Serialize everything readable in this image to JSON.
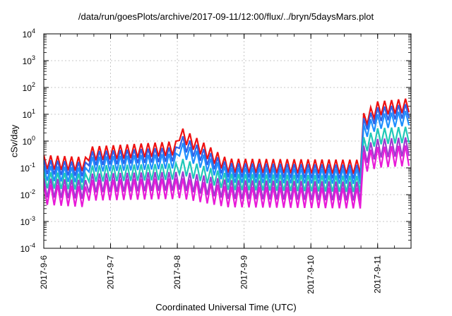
{
  "chart_data": {
    "type": "line",
    "title": "/data/run/goesPlots/archive/2017-09-11/12:00/flux/../bryn/5daysMars.plot",
    "xlabel": "Coordinated Universal Time (UTC)",
    "ylabel": "cSv/day",
    "yscale": "log",
    "ylim": [
      0.0001,
      10000
    ],
    "y_ticks": [
      {
        "value": 0.0001,
        "base": "10",
        "exp": "-4"
      },
      {
        "value": 0.001,
        "base": "10",
        "exp": "-3"
      },
      {
        "value": 0.01,
        "base": "10",
        "exp": "-2"
      },
      {
        "value": 0.1,
        "base": "10",
        "exp": "-1"
      },
      {
        "value": 1,
        "base": "10",
        "exp": "0"
      },
      {
        "value": 10,
        "base": "10",
        "exp": "1"
      },
      {
        "value": 100,
        "base": "10",
        "exp": "2"
      },
      {
        "value": 1000,
        "base": "10",
        "exp": "3"
      },
      {
        "value": 10000,
        "base": "10",
        "exp": "4"
      }
    ],
    "x_ticks": [
      "2017-9-6",
      "2017-9-7",
      "2017-9-8",
      "2017-9-9",
      "2017-9-10",
      "2017-9-11"
    ],
    "xlim": [
      "2017-09-06T00:00",
      "2017-09-11T12:00"
    ],
    "grid": true,
    "legend": "none",
    "cycle_hours": 2.5,
    "series": [
      {
        "color": "#ee1111",
        "points": [
          [
            "2017-09-06T00:00",
            0.3
          ],
          [
            "2017-09-06T15:00",
            0.25
          ],
          [
            "2017-09-06T15:01",
            0.6
          ],
          [
            "2017-09-07T18:00",
            0.9
          ],
          [
            "2017-09-08T00:00",
            1.0
          ],
          [
            "2017-09-08T00:01",
            4.0
          ],
          [
            "2017-09-08T18:00",
            0.22
          ],
          [
            "2017-09-10T18:00",
            0.2
          ],
          [
            "2017-09-10T18:01",
            9.0
          ],
          [
            "2017-09-11T00:00",
            30
          ],
          [
            "2017-09-11T12:00",
            40
          ]
        ],
        "trough_factor": 0.3
      },
      {
        "color": "#2f62e8",
        "points": [
          [
            "2017-09-06T00:00",
            0.2
          ],
          [
            "2017-09-06T15:00",
            0.16
          ],
          [
            "2017-09-06T15:01",
            0.4
          ],
          [
            "2017-09-07T18:00",
            0.55
          ],
          [
            "2017-09-08T00:00",
            0.6
          ],
          [
            "2017-09-08T00:01",
            2.0
          ],
          [
            "2017-09-08T18:00",
            0.15
          ],
          [
            "2017-09-10T18:00",
            0.13
          ],
          [
            "2017-09-10T18:01",
            6.0
          ],
          [
            "2017-09-11T00:00",
            18
          ],
          [
            "2017-09-11T12:00",
            25
          ]
        ],
        "trough_factor": 0.3
      },
      {
        "color": "#1e8fff",
        "points": [
          [
            "2017-09-06T00:00",
            0.12
          ],
          [
            "2017-09-06T15:00",
            0.1
          ],
          [
            "2017-09-06T15:01",
            0.25
          ],
          [
            "2017-09-07T18:00",
            0.32
          ],
          [
            "2017-09-08T00:00",
            0.35
          ],
          [
            "2017-09-08T00:01",
            1.1
          ],
          [
            "2017-09-08T18:00",
            0.1
          ],
          [
            "2017-09-10T18:00",
            0.09
          ],
          [
            "2017-09-10T18:01",
            3.5
          ],
          [
            "2017-09-11T00:00",
            10
          ],
          [
            "2017-09-11T12:00",
            14
          ]
        ],
        "trough_factor": 0.28
      },
      {
        "color": "#21c8b8",
        "points": [
          [
            "2017-09-06T00:00",
            0.07
          ],
          [
            "2017-09-06T15:00",
            0.06
          ],
          [
            "2017-09-06T15:01",
            0.12
          ],
          [
            "2017-09-07T18:00",
            0.14
          ],
          [
            "2017-09-08T00:00",
            0.15
          ],
          [
            "2017-09-08T00:01",
            0.25
          ],
          [
            "2017-09-08T18:00",
            0.06
          ],
          [
            "2017-09-10T18:00",
            0.05
          ],
          [
            "2017-09-10T18:01",
            1.2
          ],
          [
            "2017-09-11T00:00",
            3.0
          ],
          [
            "2017-09-11T12:00",
            3.5
          ]
        ],
        "trough_factor": 0.25
      },
      {
        "color": "#a03ad0",
        "points": [
          [
            "2017-09-06T00:00",
            0.04
          ],
          [
            "2017-09-06T15:00",
            0.035
          ],
          [
            "2017-09-06T15:01",
            0.06
          ],
          [
            "2017-09-07T18:00",
            0.07
          ],
          [
            "2017-09-08T00:00",
            0.07
          ],
          [
            "2017-09-08T00:01",
            0.08
          ],
          [
            "2017-09-08T18:00",
            0.035
          ],
          [
            "2017-09-10T18:00",
            0.03
          ],
          [
            "2017-09-10T18:01",
            0.6
          ],
          [
            "2017-09-11T00:00",
            1.2
          ],
          [
            "2017-09-11T12:00",
            1.4
          ]
        ],
        "trough_factor": 0.2
      },
      {
        "color": "#e81ad8",
        "points": [
          [
            "2017-09-06T00:00",
            0.025
          ],
          [
            "2017-09-06T15:00",
            0.02
          ],
          [
            "2017-09-06T15:01",
            0.035
          ],
          [
            "2017-09-07T18:00",
            0.04
          ],
          [
            "2017-09-08T00:00",
            0.04
          ],
          [
            "2017-09-08T00:01",
            0.045
          ],
          [
            "2017-09-08T18:00",
            0.02
          ],
          [
            "2017-09-10T18:00",
            0.018
          ],
          [
            "2017-09-10T18:01",
            0.35
          ],
          [
            "2017-09-11T00:00",
            0.6
          ],
          [
            "2017-09-11T12:00",
            0.7
          ]
        ],
        "trough_factor": 0.17
      }
    ]
  }
}
